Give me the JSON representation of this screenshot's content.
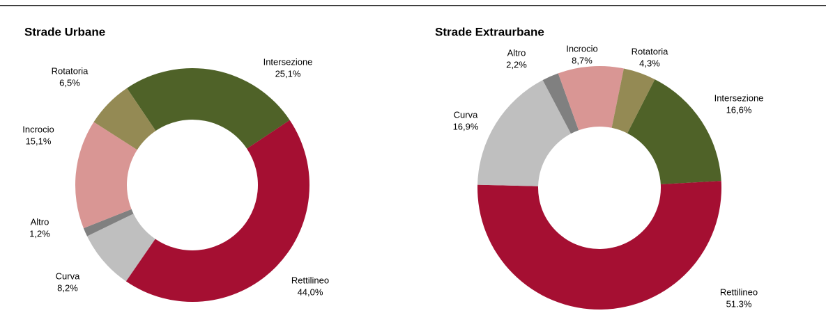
{
  "chart_data": [
    {
      "type": "donut",
      "title": "Strade Urbane",
      "categories": [
        "Intersezione",
        "Rettilineo",
        "Curva",
        "Altro",
        "Incrocio",
        "Rotatoria"
      ],
      "values": [
        25.1,
        44.0,
        8.2,
        1.2,
        15.1,
        6.5
      ],
      "value_labels": [
        "25,1%",
        "44,0%",
        "8,2%",
        "1,2%",
        "15,1%",
        "6,5%"
      ],
      "colors": [
        "#4f6228",
        "#a50f32",
        "#bfbfbf",
        "#808080",
        "#d99694",
        "#948a54"
      ]
    },
    {
      "type": "donut",
      "title": "Strade Extraurbane",
      "categories": [
        "Intersezione",
        "Rettilineo",
        "Curva",
        "Altro",
        "Incrocio",
        "Rotatoria"
      ],
      "values": [
        16.6,
        51.3,
        16.9,
        2.2,
        8.7,
        4.3
      ],
      "value_labels": [
        "16,6%",
        "51.3%",
        "16,9%",
        "2,2%",
        "8,7%",
        "4,3%"
      ],
      "colors": [
        "#4f6228",
        "#a50f32",
        "#bfbfbf",
        "#808080",
        "#d99694",
        "#948a54"
      ]
    }
  ]
}
